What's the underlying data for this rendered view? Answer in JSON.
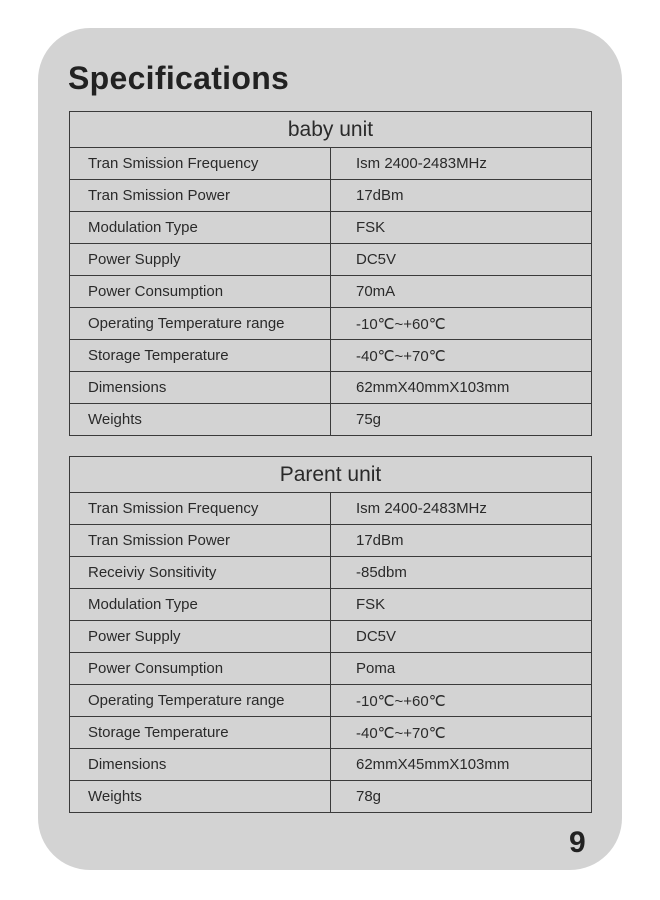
{
  "title": "Specifications",
  "baby_unit": {
    "heading": "baby unit",
    "rows": [
      [
        "Tran Smission Frequency",
        "Ism 2400-2483MHz"
      ],
      [
        "Tran Smission Power",
        "17dBm"
      ],
      [
        "Modulation Type",
        "FSK"
      ],
      [
        "Power Supply",
        "DC5V"
      ],
      [
        "Power Consumption",
        "70mA"
      ],
      [
        "Operating Temperature range",
        "-10℃~+60℃"
      ],
      [
        "Storage Temperature",
        "-40℃~+70℃"
      ],
      [
        "Dimensions",
        "62mmX40mmX103mm"
      ],
      [
        "Weights",
        "75g"
      ]
    ]
  },
  "parent_unit": {
    "heading": "Parent unit",
    "rows": [
      [
        "Tran Smission Frequency",
        "Ism 2400-2483MHz"
      ],
      [
        "Tran Smission Power",
        "17dBm"
      ],
      [
        "Receiviy Sonsitivity",
        "-85dbm"
      ],
      [
        "Modulation Type",
        "FSK"
      ],
      [
        "Power Supply",
        "DC5V"
      ],
      [
        "Power Consumption",
        "Poma"
      ],
      [
        "Operating Temperature range",
        "-10℃~+60℃"
      ],
      [
        "Storage Temperature",
        "-40℃~+70℃"
      ],
      [
        "Dimensions",
        "62mmX45mmX103mm"
      ],
      [
        "Weights",
        "78g"
      ]
    ]
  },
  "page_number": "9"
}
